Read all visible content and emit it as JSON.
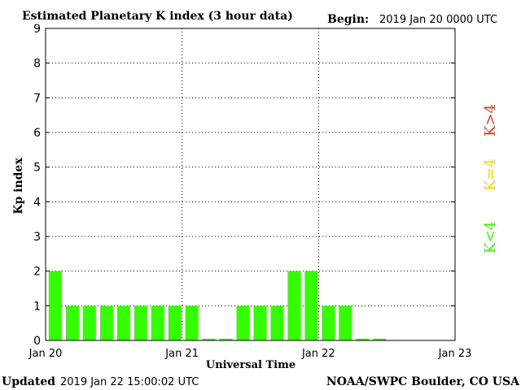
{
  "header": {
    "title": "Estimated Planetary K index (3 hour data)",
    "begin_label": "Begin:",
    "begin_value": "2019 Jan 20 0000 UTC"
  },
  "footer": {
    "updated_label": "Updated",
    "updated_value": "2019 Jan 22 15:00:02 UTC",
    "source": "NOAA/SWPC Boulder, CO USA"
  },
  "legend": {
    "items": [
      {
        "label": "K<4",
        "color": "#33ff00"
      },
      {
        "label": "K=4",
        "color": "#ffd700"
      },
      {
        "label": "K>4",
        "color": "#ff3300"
      }
    ]
  },
  "chart_data": {
    "type": "bar",
    "xlabel": "Universal Time",
    "ylabel": "Kp index",
    "ylim": [
      0,
      9
    ],
    "yticks": [
      0,
      1,
      2,
      3,
      4,
      5,
      6,
      7,
      8,
      9
    ],
    "x_tick_labels": [
      "Jan 20",
      "Jan 21",
      "Jan 22",
      "Jan 23"
    ],
    "bins_per_day": 8,
    "values": [
      2,
      1,
      1,
      1,
      1,
      1,
      1,
      1,
      1,
      0.05,
      0.05,
      1,
      1,
      1,
      2,
      2,
      1,
      1,
      0.05,
      0.05
    ],
    "bar_color": "#33ff00",
    "grid": true
  }
}
